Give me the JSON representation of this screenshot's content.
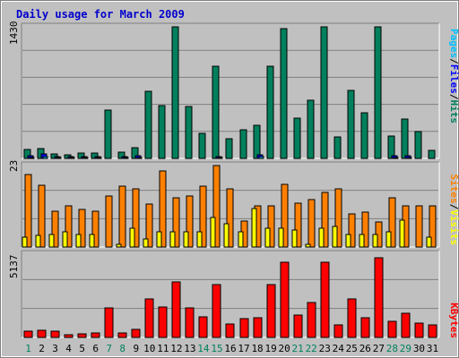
{
  "title": "Daily usage for March 2009",
  "colors": {
    "hits": "#00805c",
    "files": "#0000ff",
    "pages": "#00c0ff",
    "visits": "#ffff00",
    "sites": "#ff8000",
    "kbytes": "#ff0000",
    "separator": "#000000",
    "weekend_label": "#00805c"
  },
  "chart_data": [
    {
      "type": "bar",
      "panel": "hits",
      "ymax_label": "1430",
      "ylim": [
        0,
        1430
      ],
      "legend": [
        "Pages",
        "/",
        "Files",
        "/",
        "Hits"
      ],
      "categories": [
        "1",
        "2",
        "3",
        "4",
        "5",
        "6",
        "7",
        "8",
        "9",
        "10",
        "11",
        "12",
        "13",
        "14",
        "15",
        "16",
        "17",
        "18",
        "19",
        "20",
        "21",
        "22",
        "23",
        "24",
        "25",
        "26",
        "27",
        "28",
        "29",
        "30",
        "31"
      ],
      "weekend_days": [
        1,
        7,
        8,
        14,
        15,
        21,
        22,
        28,
        29
      ],
      "series": [
        {
          "name": "Hits",
          "values": [
            94,
            110,
            51,
            40,
            58,
            57,
            525,
            70,
            114,
            730,
            570,
            1430,
            560,
            275,
            1000,
            210,
            315,
            360,
            1000,
            1410,
            440,
            630,
            1430,
            230,
            740,
            500,
            1430,
            240,
            430,
            290,
            90
          ]
        },
        {
          "name": "Files",
          "values": [
            30,
            45,
            20,
            15,
            20,
            20,
            0,
            18,
            28,
            0,
            0,
            0,
            0,
            0,
            22,
            0,
            0,
            38,
            0,
            0,
            0,
            0,
            0,
            0,
            0,
            0,
            0,
            32,
            30,
            0,
            0
          ]
        },
        {
          "name": "Pages",
          "values": [
            12,
            18,
            8,
            6,
            8,
            8,
            0,
            7,
            10,
            0,
            0,
            0,
            0,
            0,
            10,
            0,
            0,
            15,
            0,
            0,
            0,
            0,
            0,
            0,
            0,
            0,
            0,
            12,
            12,
            0,
            0
          ]
        }
      ]
    },
    {
      "type": "bar",
      "panel": "sites",
      "ymax_label": "23",
      "ylim": [
        0,
        23
      ],
      "legend": [
        "Sites",
        "/",
        "Visits"
      ],
      "categories": [
        "1",
        "2",
        "3",
        "4",
        "5",
        "6",
        "7",
        "8",
        "9",
        "10",
        "11",
        "12",
        "13",
        "14",
        "15",
        "16",
        "17",
        "18",
        "19",
        "20",
        "21",
        "22",
        "23",
        "24",
        "25",
        "26",
        "27",
        "28",
        "29",
        "30",
        "31"
      ],
      "series": [
        {
          "name": "Sites",
          "values": [
            20.5,
            17.5,
            10,
            11.5,
            10.5,
            10,
            14.5,
            17.3,
            16.5,
            12.2,
            21.6,
            14,
            14.5,
            17.2,
            23,
            16.5,
            7.3,
            11.5,
            11.5,
            17.6,
            12.5,
            13.5,
            15.5,
            16.5,
            9.3,
            9.8,
            7.2,
            14,
            11.5,
            11.5,
            11.5
          ]
        },
        {
          "name": "Visits",
          "values": [
            2.7,
            3.2,
            3.5,
            4.2,
            3.5,
            3.6,
            0,
            0.8,
            5.2,
            2.4,
            4.2,
            4.2,
            4.2,
            4.2,
            8.3,
            6.6,
            4.4,
            10.8,
            5.2,
            5.3,
            4.9,
            0.8,
            5.2,
            5.8,
            3.5,
            3.5,
            3.5,
            4.2,
            7.5,
            0,
            2.7
          ]
        }
      ]
    },
    {
      "type": "bar",
      "panel": "kbytes",
      "ymax_label": "5137",
      "ylim": [
        0,
        5137
      ],
      "legend": [
        "KBytes"
      ],
      "categories": [
        "1",
        "2",
        "3",
        "4",
        "5",
        "6",
        "7",
        "8",
        "9",
        "10",
        "11",
        "12",
        "13",
        "14",
        "15",
        "16",
        "17",
        "18",
        "19",
        "20",
        "21",
        "22",
        "23",
        "24",
        "25",
        "26",
        "27",
        "28",
        "29",
        "30",
        "31"
      ],
      "series": [
        {
          "name": "KBytes",
          "values": [
            370,
            430,
            400,
            190,
            200,
            280,
            1810,
            250,
            490,
            2350,
            1870,
            3440,
            1830,
            1290,
            3250,
            830,
            1140,
            1190,
            3280,
            4630,
            1400,
            2180,
            4640,
            800,
            2400,
            1200,
            4920,
            1000,
            1500,
            900,
            800
          ]
        }
      ]
    }
  ]
}
